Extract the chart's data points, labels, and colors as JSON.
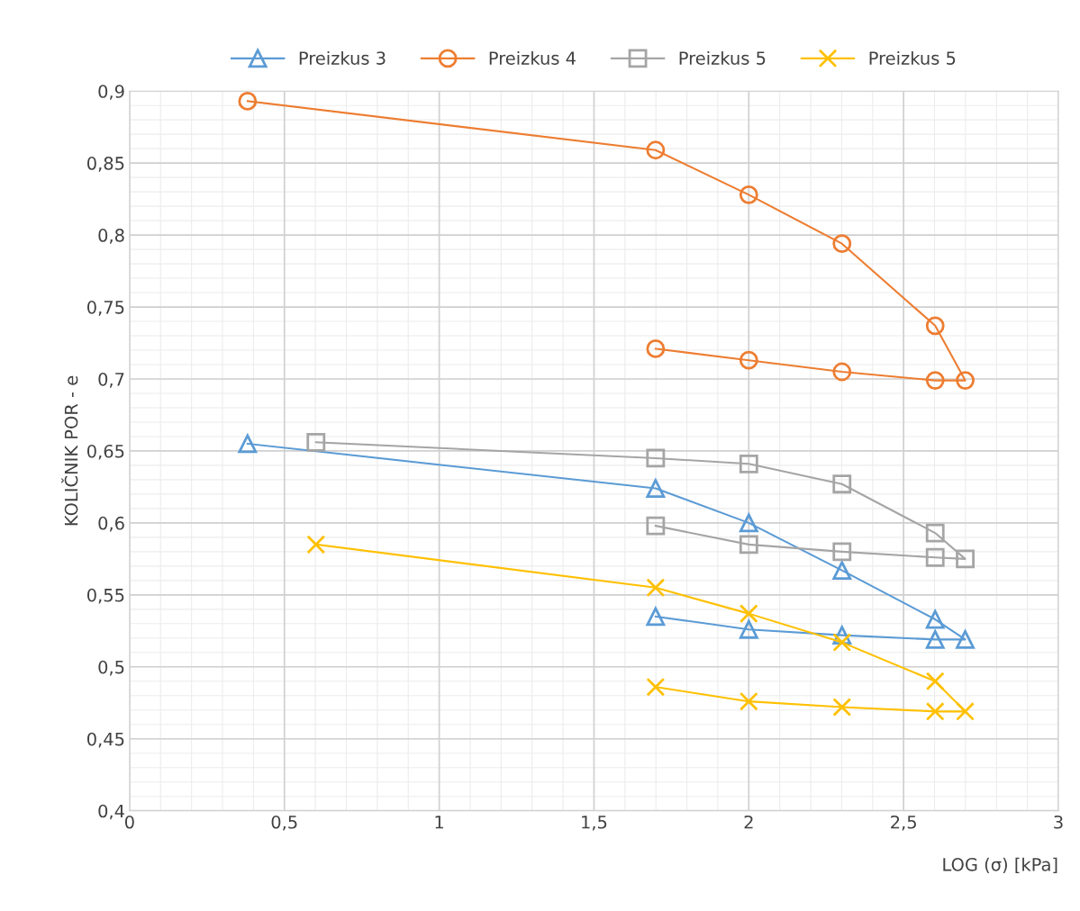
{
  "chart_data": {
    "type": "line",
    "xlabel": "LOG (σ) [kPa]",
    "ylabel": "KOLIČNIK POR - e",
    "x": [
      0.381,
      1.699,
      2.0,
      2.301,
      2.602,
      2.699,
      2.602,
      2.301,
      2.0,
      1.699
    ],
    "series": [
      {
        "name": "Preizkus 3",
        "color": "#5b9bd5",
        "marker": "triangle",
        "values": [
          0.655,
          0.624,
          0.6,
          0.567,
          0.533,
          0.519,
          0.519,
          0.522,
          0.526,
          0.535
        ]
      },
      {
        "name": "Preizkus 4",
        "color": "#ed7d31",
        "marker": "circle",
        "values": [
          0.893,
          0.859,
          0.828,
          0.794,
          0.737,
          0.699,
          0.699,
          0.705,
          0.713,
          0.721
        ]
      },
      {
        "name": "Preizkus 5",
        "color": "#a5a5a5",
        "marker": "square",
        "x": [
          0.602,
          1.699,
          2.0,
          2.301,
          2.602,
          2.699,
          2.602,
          2.301,
          2.0,
          1.699
        ],
        "values": [
          0.656,
          0.645,
          0.641,
          0.627,
          0.593,
          0.575,
          0.576,
          0.58,
          0.585,
          0.598
        ]
      },
      {
        "name": "Preizkus 5",
        "color": "#ffc000",
        "marker": "cross",
        "x": [
          0.602,
          1.699,
          2.0,
          2.301,
          2.602,
          2.699,
          2.602,
          2.301,
          2.0,
          1.699
        ],
        "values": [
          0.585,
          0.555,
          0.537,
          0.517,
          0.49,
          0.469,
          0.469,
          0.472,
          0.476,
          0.486
        ]
      }
    ],
    "xlim": [
      0,
      3
    ],
    "xticks": [
      0,
      {
        "value": 0.5,
        "label": "0,5"
      },
      1,
      {
        "value": 1.5,
        "label": "1,5"
      },
      2,
      {
        "value": 2.5,
        "label": "2,5"
      },
      3
    ],
    "ylim": [
      0.4,
      0.9
    ],
    "yticks": [
      {
        "value": 0.4,
        "label": "0,4"
      },
      {
        "value": 0.45,
        "label": "0,45"
      },
      {
        "value": 0.5,
        "label": "0,5"
      },
      {
        "value": 0.55,
        "label": "0,55"
      },
      {
        "value": 0.6,
        "label": "0,6"
      },
      {
        "value": 0.65,
        "label": "0,65"
      },
      {
        "value": 0.7,
        "label": "0,7"
      },
      {
        "value": 0.75,
        "label": "0,75"
      },
      {
        "value": 0.8,
        "label": "0,8"
      },
      {
        "value": 0.85,
        "label": "0,85"
      },
      {
        "value": 0.9,
        "label": "0,9"
      }
    ],
    "grid": true,
    "legend": "top",
    "line_style": "solid"
  }
}
